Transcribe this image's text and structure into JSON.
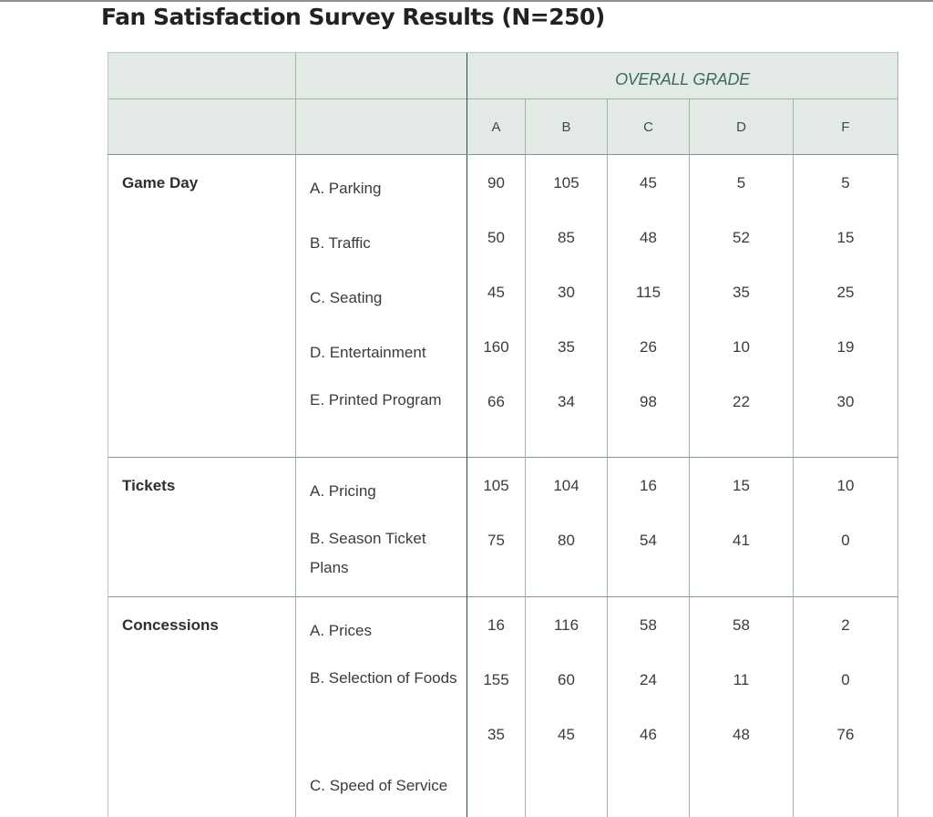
{
  "title": "Fan Satisfaction Survey Results (N=250)",
  "chart_data": {
    "type": "table",
    "title": "Fan Satisfaction Survey Results (N=250)",
    "header_group": "OVERALL GRADE",
    "columns": [
      "A",
      "B",
      "C",
      "D",
      "F"
    ],
    "groups": [
      {
        "name": "Game Day",
        "rows": [
          {
            "label": "A. Parking",
            "values": [
              "90",
              "105",
              "45",
              "5",
              "5"
            ]
          },
          {
            "label": "B. Traffic",
            "values": [
              "50",
              "85",
              "48",
              "52",
              "15"
            ]
          },
          {
            "label": "C. Seating",
            "values": [
              "45",
              "30",
              "115",
              "35",
              "25"
            ]
          },
          {
            "label": "D. Entertainment",
            "values": [
              "160",
              "35",
              "26",
              "10",
              "19"
            ]
          },
          {
            "label": "E. Printed Program",
            "values": [
              "66",
              "34",
              "98",
              "22",
              "30"
            ]
          }
        ]
      },
      {
        "name": "Tickets",
        "rows": [
          {
            "label": "A. Pricing",
            "values": [
              "105",
              "104",
              "16",
              "15",
              "10"
            ]
          },
          {
            "label": "B. Season Ticket Plans",
            "values": [
              "75",
              "80",
              "54",
              "41",
              "0"
            ]
          }
        ]
      },
      {
        "name": "Concessions",
        "rows": [
          {
            "label": "A. Prices",
            "values": [
              "16",
              "116",
              "58",
              "58",
              "2"
            ]
          },
          {
            "label": "B. Selection of Foods",
            "values": [
              "155",
              "60",
              "24",
              "11",
              "0"
            ]
          },
          {
            "label": "C. Speed of Service",
            "values": [
              "35",
              "45",
              "46",
              "48",
              "76"
            ]
          }
        ]
      }
    ]
  }
}
